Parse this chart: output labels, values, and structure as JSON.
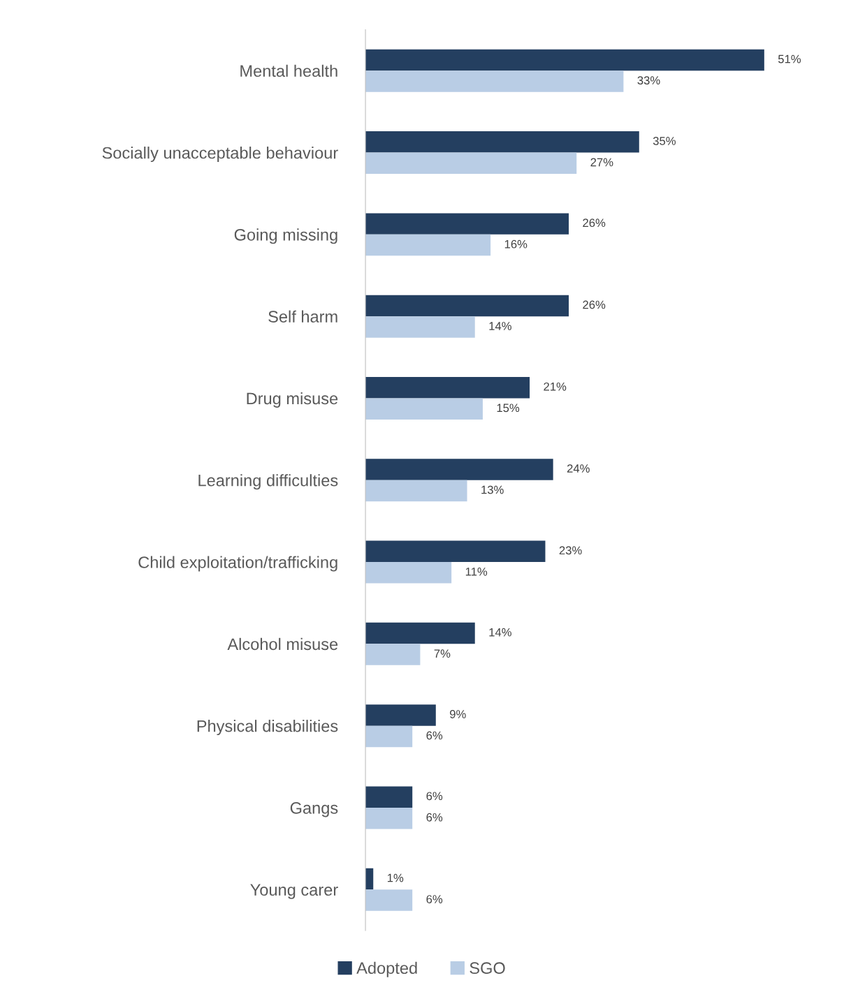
{
  "chart_data": {
    "type": "bar",
    "orientation": "horizontal",
    "categories": [
      "Mental health",
      "Socially unacceptable behaviour",
      "Going missing",
      "Self harm",
      "Drug misuse",
      "Learning difficulties",
      "Child exploitation/trafficking",
      "Alcohol misuse",
      "Physical disabilities",
      "Gangs",
      "Young carer"
    ],
    "series": [
      {
        "name": "Adopted",
        "color": "#243f60",
        "values": [
          51,
          35,
          26,
          26,
          21,
          24,
          23,
          14,
          9,
          6,
          1
        ],
        "value_labels": [
          "51%",
          "35%",
          "26%",
          "26%",
          "21%",
          "24%",
          "23%",
          "14%",
          "9%",
          "6%",
          "1%"
        ]
      },
      {
        "name": "SGO",
        "color": "#b9cde5",
        "values": [
          33,
          27,
          16,
          14,
          15,
          13,
          11,
          7,
          6,
          6,
          6
        ],
        "value_labels": [
          "33%",
          "27%",
          "16%",
          "14%",
          "15%",
          "13%",
          "11%",
          "7%",
          "6%",
          "6%",
          "6%"
        ]
      }
    ],
    "legend": "bottom",
    "grid": false
  }
}
